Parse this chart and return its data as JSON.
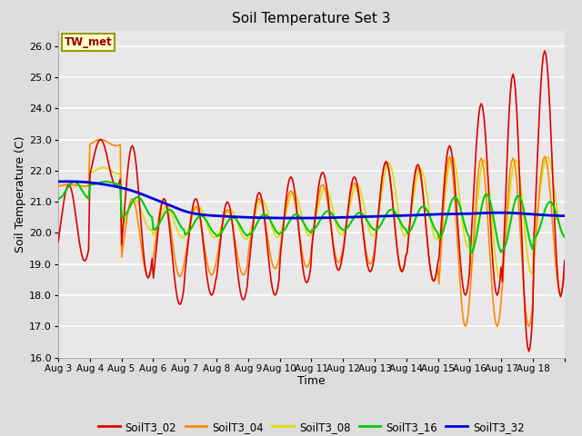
{
  "title": "Soil Temperature Set 3",
  "xlabel": "Time",
  "ylabel": "Soil Temperature (C)",
  "ylim": [
    16.0,
    26.5
  ],
  "yticks": [
    16.0,
    17.0,
    18.0,
    19.0,
    20.0,
    21.0,
    22.0,
    23.0,
    24.0,
    25.0,
    26.0
  ],
  "annotation": "TW_met",
  "annotation_color": "#990000",
  "annotation_bg": "#ffffcc",
  "annotation_border": "#999900",
  "series_colors": {
    "SoilT3_02": "#dd0000",
    "SoilT3_04": "#ff8800",
    "SoilT3_08": "#dddd00",
    "SoilT3_16": "#00cc00",
    "SoilT3_32": "#0000dd"
  },
  "fig_bg_color": "#dddddd",
  "plot_bg_color": "#e8e8e8",
  "grid_color": "#ffffff",
  "xtick_labels": [
    "Aug 3",
    "Aug 4",
    "Aug 5",
    "Aug 6",
    "Aug 7",
    "Aug 8",
    "Aug 9",
    "Aug 10",
    "Aug 11",
    "Aug 12",
    "Aug 13",
    "Aug 14",
    "Aug 15",
    "Aug 16",
    "Aug 17",
    "Aug 18"
  ],
  "n_days": 16,
  "hours_per_day": 24,
  "daily_mins_red": [
    19.1,
    21.5,
    18.55,
    17.7,
    18.0,
    17.85,
    18.0,
    18.4,
    18.8,
    18.75,
    18.75,
    18.45,
    18.0,
    18.0,
    16.2,
    17.95
  ],
  "daily_maxs_red": [
    21.55,
    23.0,
    22.8,
    21.1,
    21.1,
    21.0,
    21.3,
    21.8,
    21.95,
    21.8,
    22.3,
    22.2,
    22.8,
    24.15,
    25.1,
    25.85
  ],
  "daily_mins_ora": [
    21.5,
    22.8,
    18.6,
    18.6,
    18.65,
    18.65,
    18.85,
    18.9,
    19.05,
    19.0,
    18.8,
    18.45,
    17.0,
    17.0,
    17.0,
    18.05
  ],
  "daily_maxs_ora": [
    21.55,
    23.0,
    21.1,
    21.1,
    20.85,
    20.75,
    21.1,
    21.35,
    21.55,
    21.6,
    22.25,
    22.1,
    22.45,
    22.4,
    22.4,
    22.45
  ],
  "daily_mins_yel": [
    21.5,
    21.9,
    20.1,
    19.85,
    19.85,
    19.8,
    19.85,
    19.9,
    19.95,
    19.9,
    19.9,
    19.8,
    19.55,
    18.55,
    18.7,
    19.95
  ],
  "daily_maxs_yel": [
    21.55,
    22.1,
    21.05,
    20.85,
    20.85,
    20.75,
    21.05,
    21.3,
    21.45,
    21.55,
    22.25,
    22.05,
    22.45,
    22.35,
    22.35,
    22.45
  ],
  "daily_mins_grn": [
    21.1,
    21.55,
    20.5,
    20.1,
    19.95,
    19.9,
    19.95,
    20.0,
    20.1,
    20.1,
    20.1,
    20.0,
    19.85,
    19.35,
    19.45,
    19.85
  ],
  "daily_maxs_grn": [
    21.65,
    21.65,
    21.15,
    20.75,
    20.55,
    20.5,
    20.6,
    20.6,
    20.7,
    20.65,
    20.75,
    20.85,
    21.15,
    21.25,
    21.2,
    21.0
  ],
  "blue_pts_x": [
    0,
    0.5,
    1.0,
    1.5,
    2.0,
    2.5,
    3.0,
    3.5,
    4.0,
    5.0,
    6.0,
    7.0,
    8.0,
    9.0,
    10.0,
    11.0,
    12.0,
    13.0,
    14.0,
    15.0,
    16.0
  ],
  "blue_pts_y": [
    21.65,
    21.65,
    21.62,
    21.55,
    21.45,
    21.3,
    21.1,
    20.9,
    20.7,
    20.55,
    20.5,
    20.48,
    20.48,
    20.5,
    20.53,
    20.56,
    20.6,
    20.62,
    20.65,
    20.6,
    20.55
  ]
}
